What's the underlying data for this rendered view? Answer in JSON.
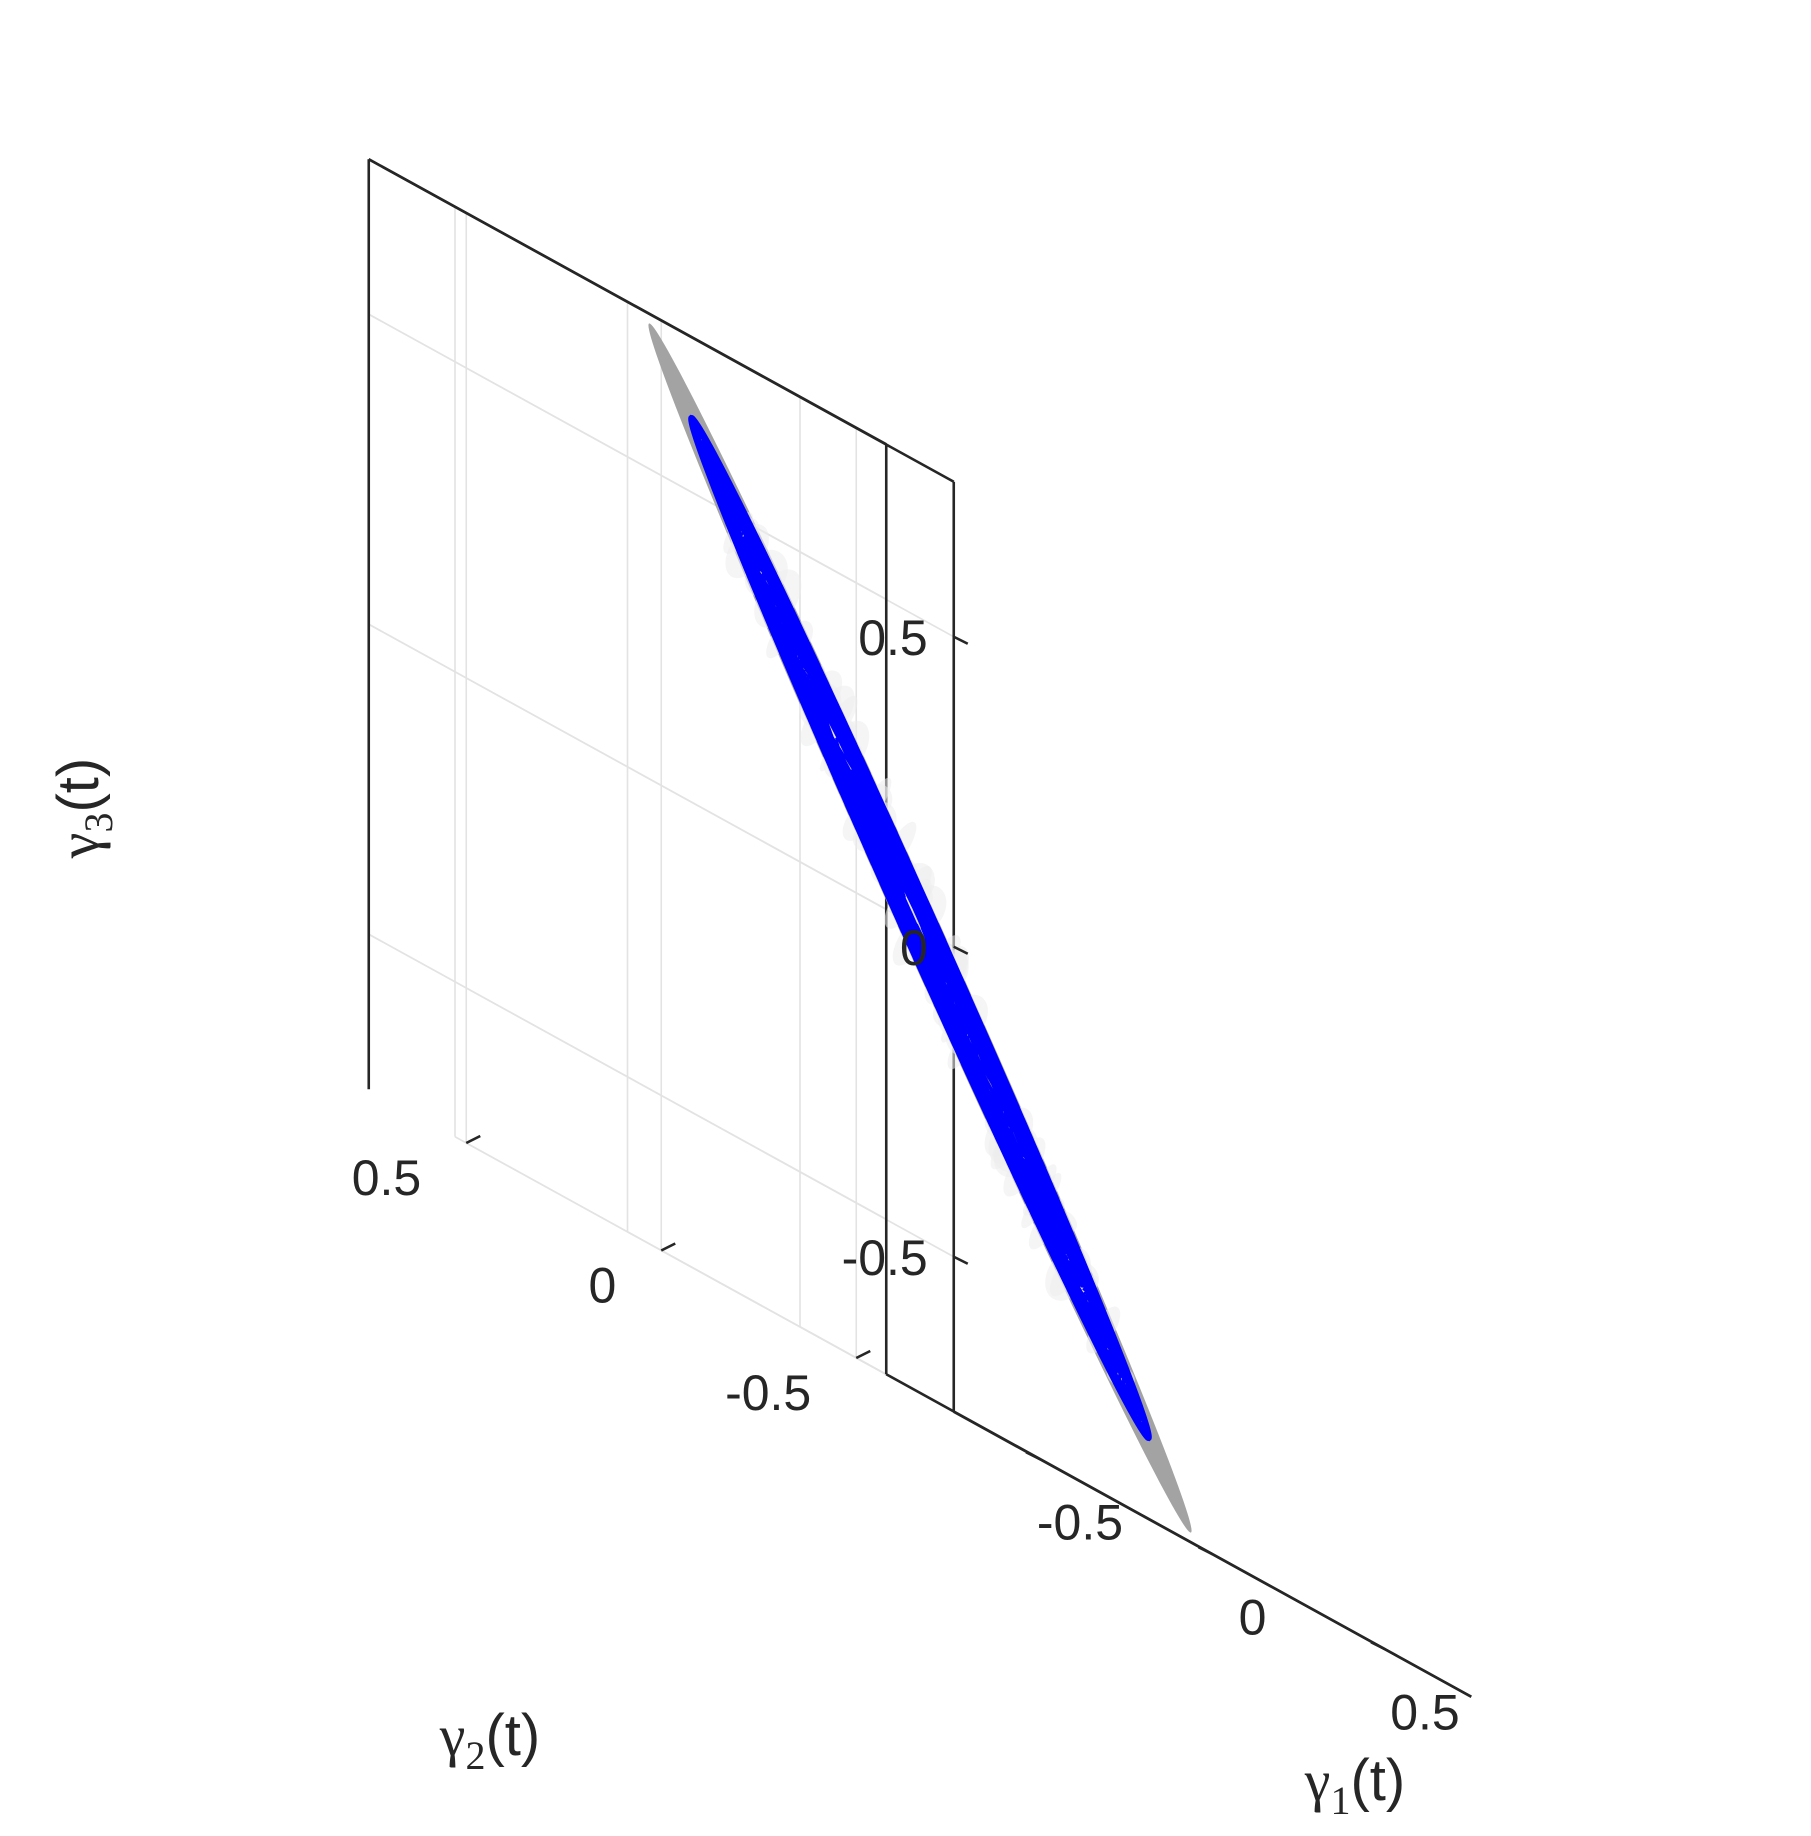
{
  "chart_data": {
    "type": "scatter",
    "projection": "3d",
    "xlabel": {
      "greek": "γ",
      "sub": "1",
      "tail": "(t)"
    },
    "ylabel": {
      "greek": "γ",
      "sub": "2",
      "tail": "(t)"
    },
    "zlabel": {
      "greek": "γ",
      "sub": "3",
      "tail": "(t)"
    },
    "x_ticks": [
      "-0.5",
      "0",
      "0.5"
    ],
    "y_ticks": [
      "-0.5",
      "0",
      "0.5"
    ],
    "z_ticks": [
      "-0.5",
      "0",
      "0.5"
    ],
    "xlim": [
      -0.75,
      0.75
    ],
    "ylim": [
      -0.75,
      0.75
    ],
    "zlim": [
      -0.75,
      0.75
    ],
    "grid": true,
    "box": true,
    "legend": "none",
    "series": [
      {
        "kind": "surface",
        "description_shape": "disc",
        "normal": [
          0.577,
          -0.577,
          0.577
        ],
        "center": [
          0,
          0,
          0
        ],
        "radius": 0.9,
        "color": "#a3a3a3"
      },
      {
        "kind": "trajectory",
        "description_shape": "filled disc of random trajectory segments",
        "normal": [
          0.577,
          -0.577,
          0.577
        ],
        "center": [
          0,
          0,
          0
        ],
        "radius": 0.76,
        "color": "#0000ff"
      }
    ]
  },
  "colors": {
    "axes": "#262626",
    "grid": "#e3e3e3",
    "surface": "#a3a3a3",
    "trajectory": "#0000ff",
    "surface_highlight": "#ececec"
  }
}
